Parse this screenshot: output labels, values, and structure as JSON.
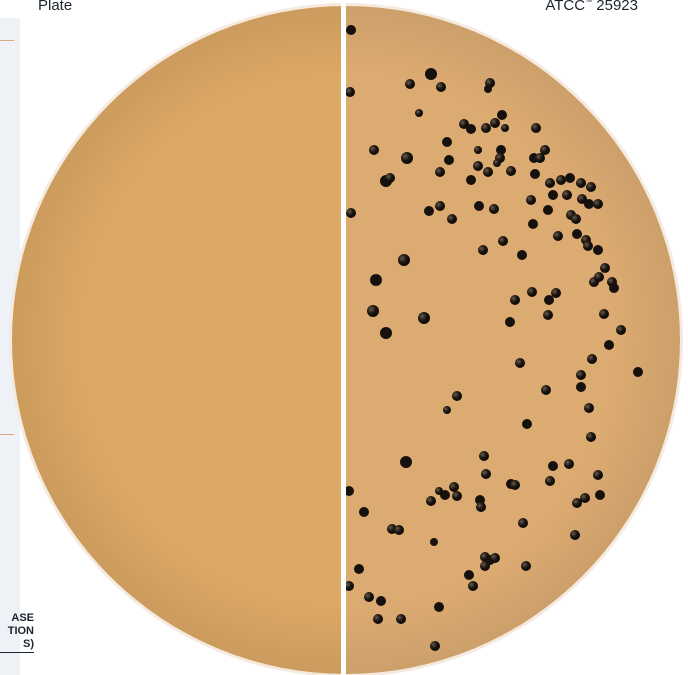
{
  "captions": {
    "left": "Plate",
    "right_prefix": "ATCC",
    "right_mark": "™",
    "right_number": "25923"
  },
  "side_fragment": {
    "lines": [
      "ASE",
      "TION",
      "S)"
    ]
  },
  "colors": {
    "agar_left": "#dba764",
    "agar_right": "#dcab72",
    "plate_rim": "#f4eadf",
    "divider": "#ffffff",
    "colony": "#17110d",
    "background": "#ffffff"
  },
  "subject": {
    "left_half": "uninoculated agar, no growth",
    "right_half": "black colonies on tan agar"
  }
}
